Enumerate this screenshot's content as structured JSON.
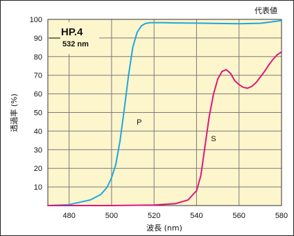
{
  "chart_data": {
    "type": "line",
    "corner_note": "代表値",
    "xlabel": "波長 (nm)",
    "ylabel": "透過率 (%)",
    "xlim": [
      470,
      580
    ],
    "ylim": [
      0,
      100
    ],
    "x_ticks": [
      480,
      500,
      520,
      540,
      560,
      580
    ],
    "y_ticks": [
      10,
      20,
      30,
      40,
      50,
      60,
      70,
      80,
      90,
      100
    ],
    "grid": true,
    "background_color": "#fdf5cc",
    "grid_color": "#7a7a7a",
    "legend": {
      "position": "top-left",
      "title": "HP.4",
      "subtitle": "532 nm"
    },
    "series": [
      {
        "name": "P",
        "color": "#1da7e0",
        "label_at": [
          513,
          45
        ],
        "x": [
          470,
          480,
          490,
          495,
          498,
          500,
          502,
          504,
          506,
          508,
          510,
          512,
          514,
          516,
          518,
          520,
          524,
          530,
          540,
          550,
          560,
          570,
          575,
          580
        ],
        "y": [
          0,
          0.5,
          3,
          6,
          10,
          15,
          22,
          35,
          52,
          70,
          85,
          93,
          96.5,
          97.8,
          98.2,
          98.2,
          98.2,
          98.1,
          98.0,
          97.8,
          97.7,
          97.9,
          98.6,
          99.4
        ]
      },
      {
        "name": "S",
        "color": "#e0157a",
        "label_at": [
          548,
          36
        ],
        "x": [
          470,
          500,
          520,
          530,
          536,
          540,
          542,
          544,
          546,
          548,
          550,
          552,
          554,
          556,
          558,
          560,
          562,
          564,
          566,
          568,
          570,
          572,
          574,
          576,
          578,
          580
        ],
        "y": [
          0,
          0,
          0.3,
          1,
          3,
          8,
          16,
          32,
          48,
          60,
          68,
          72,
          73,
          71,
          67,
          65,
          63.5,
          63,
          64,
          66,
          69,
          72,
          75.5,
          78.5,
          81,
          82.5
        ]
      }
    ]
  }
}
